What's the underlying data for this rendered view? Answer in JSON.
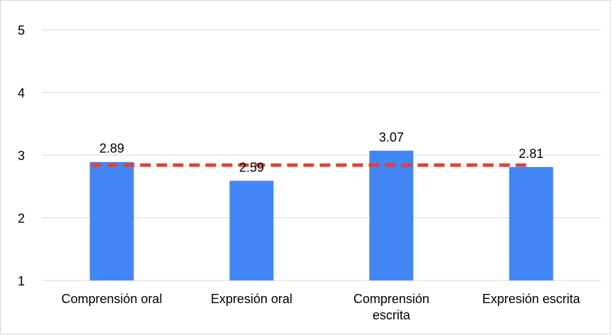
{
  "chart_data": {
    "type": "bar",
    "categories": [
      [
        "Comprensión oral"
      ],
      [
        "Expresión oral"
      ],
      [
        "Comprensión",
        "escrita"
      ],
      [
        "Expresión escrita"
      ]
    ],
    "values": [
      2.89,
      2.59,
      3.07,
      2.81
    ],
    "data_labels": [
      "2.89",
      "2.59",
      "3.07",
      "2.81"
    ],
    "reference_line": {
      "value": 2.84,
      "style": "dashed",
      "color": "#e0413a"
    },
    "ylim": [
      1,
      5
    ],
    "yticks": [
      "1",
      "2",
      "3",
      "4",
      "5"
    ],
    "grid": true,
    "legend": "none",
    "bar_color": "#4285f4"
  }
}
